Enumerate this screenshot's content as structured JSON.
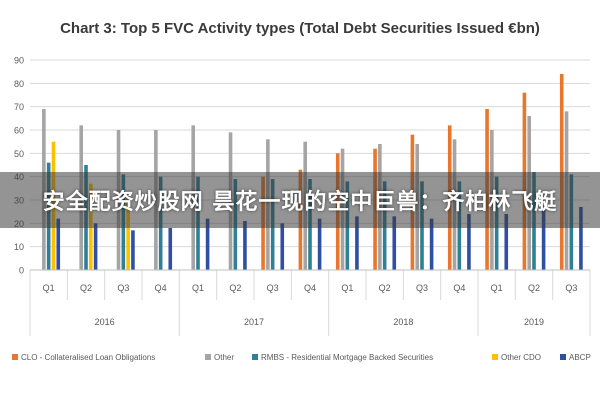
{
  "chart_data": {
    "type": "bar",
    "title": "Chart 3: Top 5 FVC Activity types (Total Debt Securities Issued €bn)",
    "xlabel": "",
    "ylabel": "",
    "ylim": [
      0,
      90
    ],
    "y_ticks": [
      0,
      10,
      20,
      30,
      40,
      50,
      60,
      70,
      80,
      90
    ],
    "grid": true,
    "legend_position": "bottom",
    "categories": [
      "Q1",
      "Q2",
      "Q3",
      "Q4",
      "Q1",
      "Q2",
      "Q3",
      "Q4",
      "Q1",
      "Q2",
      "Q3",
      "Q4",
      "Q1",
      "Q2",
      "Q3"
    ],
    "year_groups": [
      {
        "label": "2016",
        "count": 4
      },
      {
        "label": "2017",
        "count": 4
      },
      {
        "label": "2018",
        "count": 4
      },
      {
        "label": "2019",
        "count": 3
      }
    ],
    "series": [
      {
        "name": "CLO - Collateralised Loan Obligations",
        "color": "#e8762b",
        "values": [
          0,
          0,
          0,
          0,
          0,
          0,
          40,
          43,
          50,
          52,
          58,
          62,
          69,
          76,
          84
        ]
      },
      {
        "name": "Other",
        "color": "#a5a5a5",
        "values": [
          69,
          62,
          60,
          60,
          62,
          59,
          56,
          55,
          52,
          54,
          54,
          56,
          60,
          66,
          68
        ]
      },
      {
        "name": "RMBS - Residential Mortgage Backed Securities",
        "color": "#2f7f96",
        "values": [
          46,
          45,
          41,
          40,
          40,
          39,
          39,
          39,
          38,
          38,
          38,
          38,
          40,
          42,
          41
        ]
      },
      {
        "name": "Other CDO",
        "color": "#ffc000",
        "values": [
          55,
          37,
          31,
          0,
          0,
          0,
          0,
          0,
          0,
          0,
          0,
          0,
          0,
          0,
          0
        ]
      },
      {
        "name": "ABCP",
        "color": "#2e4fa2",
        "values": [
          22,
          20,
          17,
          18,
          22,
          21,
          20,
          22,
          23,
          23,
          22,
          24,
          24,
          26,
          27
        ]
      }
    ]
  },
  "overlay": {
    "text": "安全配资炒股网 昙花一现的空中巨兽：齐柏林飞艇"
  }
}
